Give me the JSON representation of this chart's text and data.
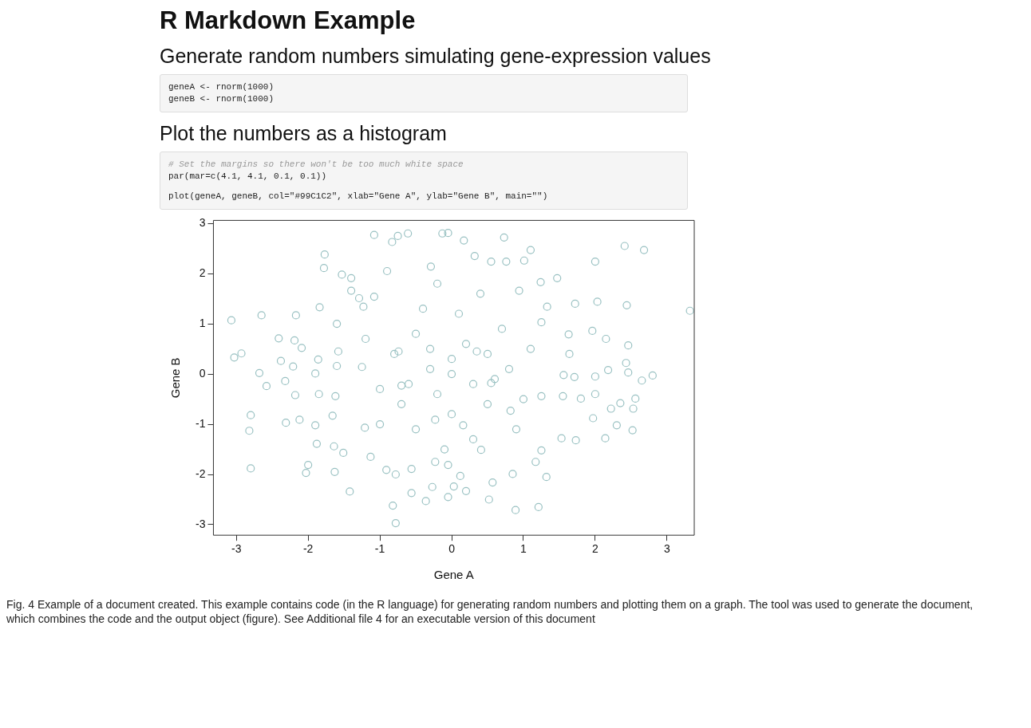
{
  "chart_data": {
    "type": "scatter",
    "title": "R Markdown Example",
    "subtitle": "Generate random numbers simulating gene-expression values",
    "xlabel": "Gene A",
    "ylabel": "Gene B",
    "annotations": [
      "geneA <- rnorm(1000)",
      "geneB <- rnorm(1000)",
      "Plot the numbers as a histogram",
      "# Set the margins so there won't be too much white space",
      "par(mar=c(4.1, 4.1, 0.1, 0.1))",
      "plot(geneA, geneB, col=\"#99C1C2\", xlab=\"Gene A\", ylab=\"Gene B\", main=\"\")",
      "Fig. 4 Example of a document created. This example contains code (in the R language) for generating random numbers and plotting them on a graph. The tool was used to generate the document, which combines the code and the output object (figure). See Additional file 4 for an executable version of this document"
    ],
    "color": "#99c1c2",
    "marker": "circle",
    "x": [
      -3.07,
      -3.03,
      -2.93,
      -2.8,
      -2.82,
      -2.8,
      -2.65,
      -2.68,
      -2.58,
      -2.41,
      -2.38,
      -2.32,
      -2.31,
      -2.17,
      -2.19,
      -2.21,
      -2.18,
      -2.09,
      -2.12,
      -2.0,
      -2.03,
      -1.77,
      -1.78,
      -1.84,
      -1.86,
      -1.9,
      -1.85,
      -1.9,
      -1.88,
      -1.63,
      -1.53,
      -1.4,
      -1.4,
      -1.6,
      -1.58,
      -1.6,
      -1.62,
      -1.66,
      -1.64,
      -1.51,
      -1.42,
      -1.29,
      -1.23,
      -1.08,
      -1.25,
      -1.21,
      -1.13,
      -1.08,
      -0.9,
      -0.83,
      -0.75,
      -0.61,
      -0.91,
      -0.78,
      -0.56,
      -0.82,
      -0.78,
      -0.56,
      -0.36,
      -0.27,
      -0.29,
      -0.23,
      -0.13,
      -0.05,
      0.17,
      0.32,
      0.73,
      1.1,
      1.01,
      1.47,
      2.0,
      2.41,
      2.68,
      2.03,
      2.44,
      3.32,
      1.72,
      1.96,
      2.15,
      2.46,
      2.43,
      2.46,
      2.65,
      2.8,
      2.18,
      2.0,
      2.0,
      2.22,
      2.35,
      2.56,
      2.53,
      2.3,
      2.52,
      1.97,
      2.14,
      1.73,
      1.53,
      1.25,
      1.17,
      1.32,
      0.85,
      0.89,
      1.21,
      0.52,
      0.57,
      -0.05,
      0.03,
      0.2,
      0.12,
      -0.05,
      0.41,
      1.25,
      1.55,
      1.8,
      1.71,
      1.56,
      1.64,
      1.63,
      1.25,
      1.33,
      1.24,
      0.55,
      0.76,
      0.94,
      -0.5,
      -0.3,
      0.0,
      0.2,
      0.5,
      0.3,
      -0.2,
      0.0,
      0.5,
      -0.6,
      -0.8,
      -1.0,
      0.8,
      1.0,
      0.7,
      -0.4,
      0.1,
      0.4,
      -0.2,
      0.9,
      -0.5,
      -1.0,
      -1.2,
      0.3,
      -0.1,
      1.1,
      0.6,
      -0.7,
      0.0,
      -0.3,
      -0.74,
      -0.7,
      -0.23,
      0.35,
      0.55,
      0.82,
      0.16
    ],
    "values": [
      1.07,
      0.33,
      0.41,
      -0.82,
      -1.13,
      -1.88,
      1.17,
      0.02,
      -0.24,
      0.71,
      0.26,
      -0.14,
      -0.97,
      1.17,
      0.67,
      0.15,
      -0.42,
      0.52,
      -0.91,
      -1.81,
      -1.97,
      2.38,
      2.11,
      1.33,
      0.29,
      0.01,
      -0.4,
      -1.02,
      -1.39,
      -1.95,
      1.98,
      1.91,
      1.66,
      1.0,
      0.45,
      0.16,
      -0.44,
      -0.83,
      -1.44,
      -1.57,
      -2.34,
      1.51,
      1.34,
      1.54,
      0.14,
      -1.07,
      -1.65,
      2.77,
      2.05,
      2.63,
      2.75,
      2.8,
      -1.91,
      -2.0,
      -1.89,
      -2.62,
      -2.97,
      -2.37,
      -2.53,
      -2.25,
      2.14,
      -1.75,
      2.8,
      2.81,
      2.66,
      2.35,
      2.72,
      2.47,
      2.26,
      1.91,
      2.24,
      2.55,
      2.47,
      1.44,
      1.37,
      1.26,
      1.4,
      0.86,
      0.7,
      0.57,
      0.22,
      0.03,
      -0.13,
      -0.03,
      0.08,
      -0.05,
      -0.4,
      -0.69,
      -0.58,
      -0.49,
      -0.69,
      -1.02,
      -1.12,
      -0.88,
      -1.28,
      -1.32,
      -1.28,
      -1.52,
      -1.75,
      -2.05,
      -1.99,
      -2.71,
      -2.65,
      -2.5,
      -2.16,
      -2.45,
      -2.24,
      -2.33,
      -2.03,
      -1.81,
      -1.51,
      -0.44,
      -0.44,
      -0.49,
      -0.06,
      -0.02,
      0.4,
      0.79,
      1.03,
      1.34,
      1.83,
      2.24,
      2.24,
      1.66,
      0.8,
      0.5,
      0.3,
      0.6,
      0.4,
      -0.2,
      -0.4,
      -0.8,
      -0.6,
      -0.2,
      0.4,
      -0.3,
      0.1,
      -0.5,
      0.9,
      1.3,
      1.2,
      1.6,
      1.8,
      -1.1,
      -1.1,
      -1.0,
      0.7,
      -1.3,
      -1.5,
      0.5,
      -0.1,
      -0.6,
      0.0,
      0.1,
      0.45,
      -0.23,
      -0.91,
      0.45,
      -0.18,
      -0.73,
      -1.02
    ],
    "xlim": [
      -3.32,
      3.38
    ],
    "ylim": [
      -3.21,
      3.06
    ],
    "xticks": [
      -3,
      -2,
      -1,
      0,
      1,
      2,
      3
    ],
    "yticks": [
      -3,
      -2,
      -1,
      0,
      1,
      2,
      3
    ]
  }
}
